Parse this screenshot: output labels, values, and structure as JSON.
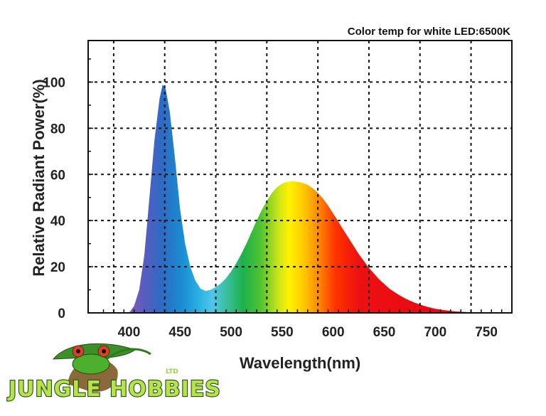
{
  "chart_data": {
    "type": "area",
    "title": "Color temp for white LED:6500K",
    "xlabel": "Wavelength(nm)",
    "ylabel": "Relative Radiant Power(%)",
    "xlim": [
      360,
      775
    ],
    "ylim": [
      0,
      118
    ],
    "x_ticks": [
      400,
      450,
      500,
      550,
      600,
      650,
      700,
      750
    ],
    "y_ticks": [
      0,
      20,
      40,
      60,
      80,
      100
    ],
    "x_grid": [
      385,
      435,
      485,
      535,
      585,
      635,
      685,
      735
    ],
    "y_grid": [
      20,
      40,
      60,
      80,
      100
    ],
    "grid": true,
    "fill": "visible-spectrum gradient",
    "series": [
      {
        "x": [
          400,
          405,
          410,
          415,
          420,
          425,
          430,
          433,
          436,
          440,
          445,
          450,
          455,
          460,
          465,
          470,
          475,
          480,
          485,
          490,
          495,
          500,
          505,
          510,
          515,
          520,
          525,
          530,
          535,
          540,
          545,
          550,
          555,
          560,
          565,
          570,
          575,
          580,
          585,
          590,
          595,
          600,
          605,
          610,
          615,
          620,
          625,
          630,
          635,
          640,
          645,
          650,
          655,
          660,
          665,
          670,
          675,
          680,
          685,
          690,
          695,
          700,
          705,
          710,
          715,
          720,
          725,
          730,
          735,
          740,
          745,
          750,
          755,
          760,
          765,
          770,
          775
        ],
        "values": [
          0,
          3,
          10,
          25,
          50,
          75,
          93,
          99,
          97,
          87,
          67,
          45,
          30,
          20,
          14,
          10.5,
          9.5,
          10,
          11.2,
          12.8,
          15,
          18,
          21.5,
          25.5,
          30,
          35,
          40,
          44.5,
          48.5,
          52,
          54.5,
          56,
          56.8,
          57,
          56.8,
          56.3,
          55.5,
          54,
          52,
          49.5,
          46.5,
          43,
          39.5,
          36,
          32.5,
          29,
          25.5,
          22.5,
          19.5,
          17,
          14.5,
          12.5,
          10.5,
          9,
          7.6,
          6.4,
          5.3,
          4.4,
          3.6,
          2.9,
          2.3,
          1.8,
          1.4,
          1.1,
          0.85,
          0.65,
          0.5,
          0.38,
          0.28,
          0.2,
          0.14,
          0.1,
          0.07,
          0.05,
          0.03,
          0.02,
          0
        ]
      }
    ]
  },
  "logo": {
    "text": "JUNGLE HOBBIES",
    "suffix": "LTD",
    "colors": {
      "letters": "#b7e24a",
      "outline": "#1f4d12",
      "frog": "#4caf2e",
      "eye": "#e23b2a"
    }
  }
}
